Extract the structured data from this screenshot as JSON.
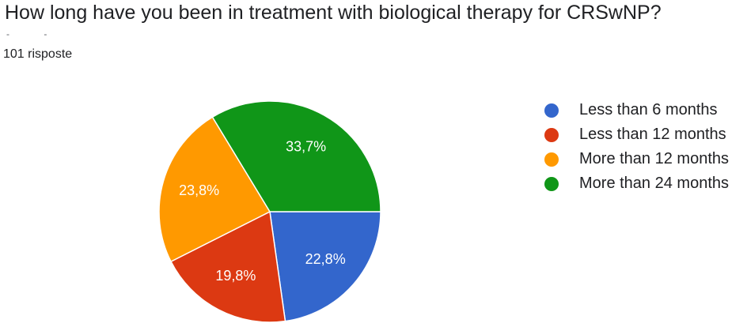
{
  "header": {
    "title": "How long have you been in treatment with biological therapy for CRSwNP?",
    "dashes": "- -",
    "responses": "101 risposte"
  },
  "chart_data": {
    "type": "pie",
    "title": "How long have you been in treatment with biological therapy for CRSwNP?",
    "categories": [
      "Less than 6 months",
      "Less than 12 months",
      "More than 12 months",
      "More than 24 months"
    ],
    "values": [
      22.8,
      19.8,
      23.8,
      33.7
    ],
    "labels": [
      "22,8%",
      "19,8%",
      "23,8%",
      "33,7%"
    ],
    "colors": [
      "#3366cc",
      "#dc3912",
      "#ff9900",
      "#109618"
    ],
    "legend_position": "right"
  }
}
